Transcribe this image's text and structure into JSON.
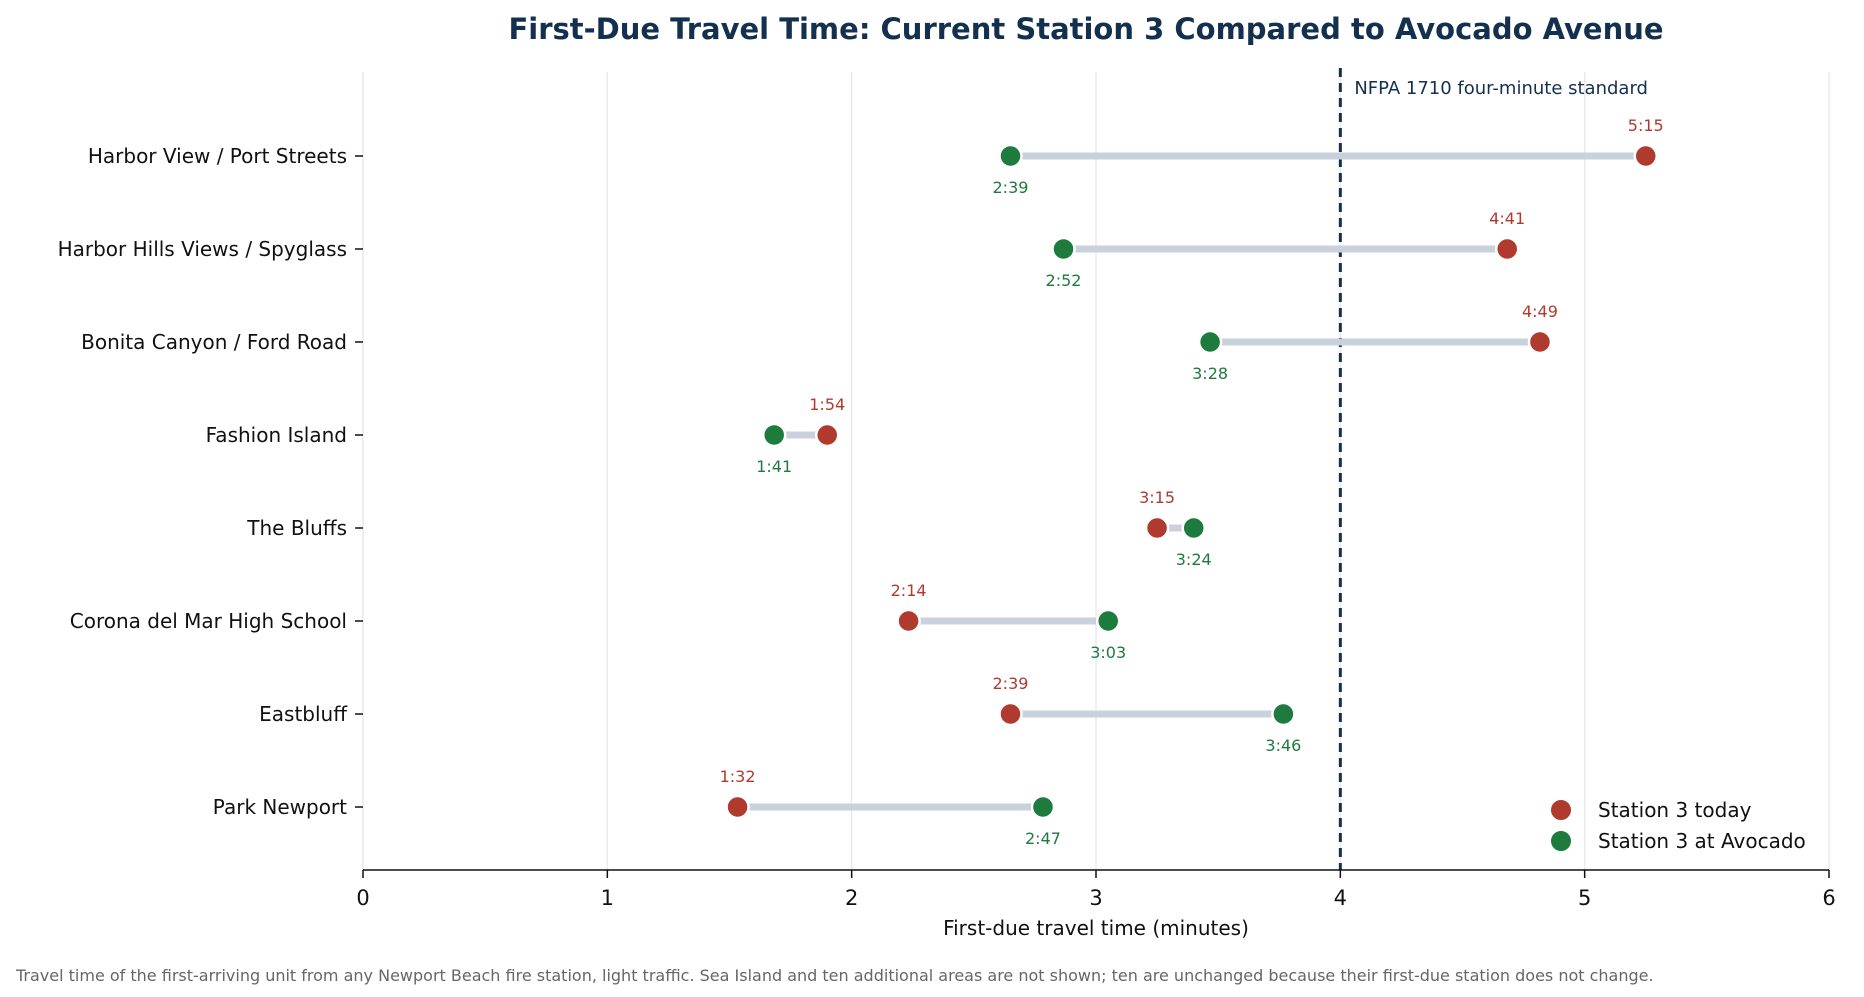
{
  "chart_data": {
    "type": "dumbbell",
    "title": "First-Due Travel Time: Current Station 3 Compared to Avocado Avenue",
    "xlabel": "First-due travel time (minutes)",
    "xlim": [
      0,
      6
    ],
    "xticks": [
      "0",
      "1",
      "2",
      "3",
      "4",
      "5",
      "6"
    ],
    "grid": true,
    "legend_position": "bottom-right",
    "categories": [
      "Harbor View / Port Streets",
      "Harbor Hills Views / Spyglass",
      "Bonita Canyon / Ford Road",
      "Fashion Island",
      "The Bluffs",
      "Corona del Mar High School",
      "Eastbluff",
      "Park Newport"
    ],
    "series": [
      {
        "name": "Station 3 today",
        "color": "#b03a2e",
        "values": [
          5.25,
          4.683,
          4.817,
          1.9,
          3.25,
          2.233,
          2.65,
          1.533
        ],
        "labels": [
          "5:15",
          "4:41",
          "4:49",
          "1:54",
          "3:15",
          "2:14",
          "2:39",
          "1:32"
        ]
      },
      {
        "name": "Station 3 at Avocado",
        "color": "#1e7b3e",
        "values": [
          2.65,
          2.867,
          3.467,
          1.683,
          3.4,
          3.05,
          3.767,
          2.783
        ],
        "labels": [
          "2:39",
          "2:52",
          "3:28",
          "1:41",
          "3:24",
          "3:03",
          "3:46",
          "2:47"
        ]
      }
    ],
    "reference_line": {
      "value": 4,
      "label": "NFPA 1710 four-minute standard",
      "color": "#14304f"
    },
    "connector_color": "#c8d1dc",
    "footnote": "Travel time of the first-arriving unit from any Newport Beach fire station, light traffic. Sea Island and ten additional areas are not shown; ten are unchanged because their first-due station does not change."
  }
}
